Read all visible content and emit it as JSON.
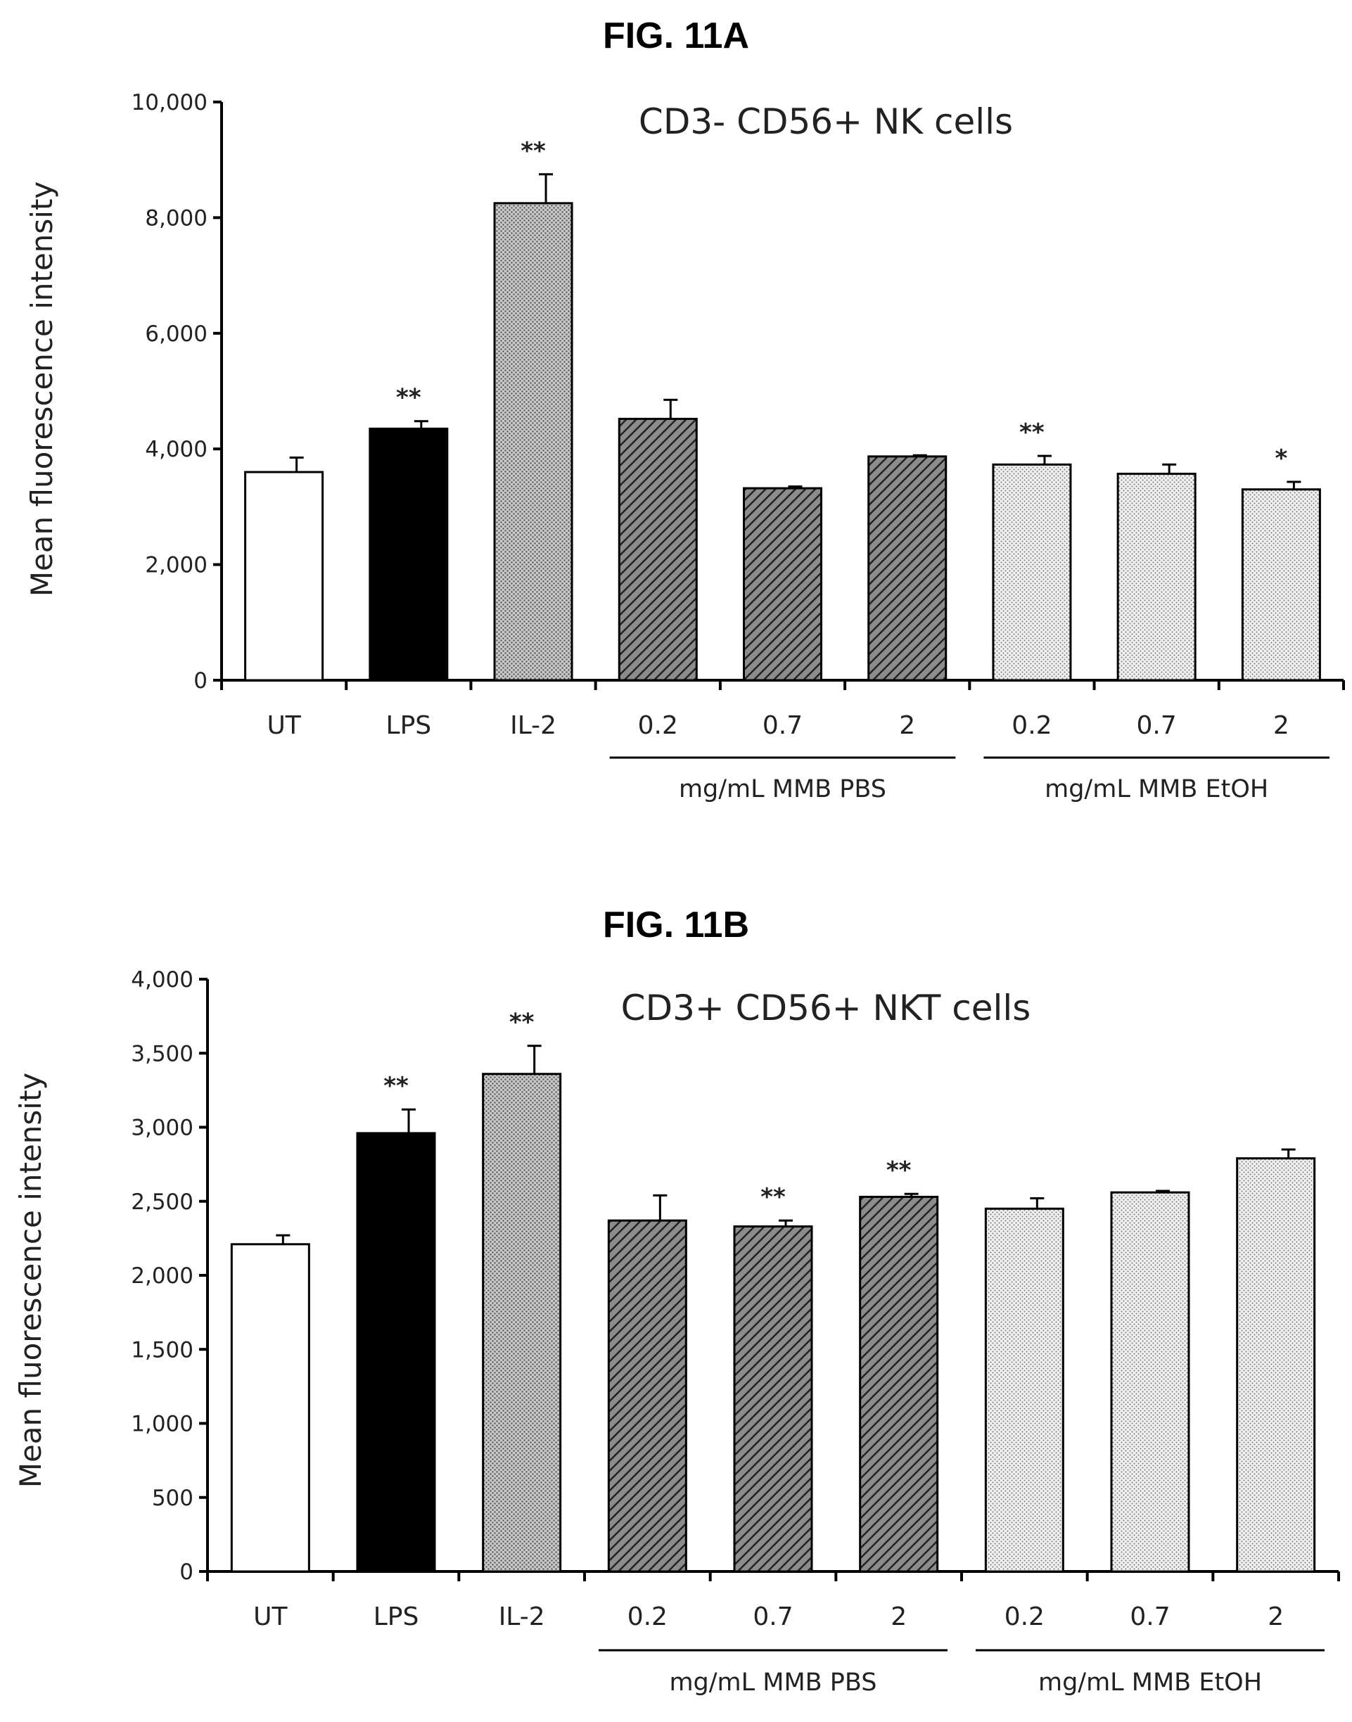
{
  "chart_data": [
    {
      "type": "bar",
      "figure_label": "FIG. 11A",
      "title": "CD3- CD56+ NK cells",
      "ylabel": "Mean fluorescence intensity",
      "ylim": [
        0,
        10000
      ],
      "yticks": [
        0,
        2000,
        4000,
        6000,
        8000,
        10000
      ],
      "ytick_labels": [
        "0",
        "2,000",
        "4,000",
        "6,000",
        "8,000",
        "10,000"
      ],
      "categories": [
        "UT",
        "LPS",
        "IL-2",
        "0.2",
        "0.7",
        "2",
        "0.2",
        "0.7",
        "2"
      ],
      "values": [
        3600,
        4350,
        8250,
        4520,
        3320,
        3870,
        3730,
        3570,
        3300
      ],
      "errors": [
        250,
        130,
        500,
        330,
        30,
        20,
        150,
        160,
        130
      ],
      "significance": [
        "",
        "**",
        "**",
        "",
        "",
        "",
        "**",
        "",
        "*"
      ],
      "fills": [
        "white",
        "black",
        "gray-dots",
        "hatch",
        "hatch",
        "hatch",
        "light-dots",
        "light-dots",
        "light-dots"
      ],
      "groups": [
        {
          "label": "mg/mL MMB PBS",
          "start": 3,
          "end": 5
        },
        {
          "label": "mg/mL MMB EtOH",
          "start": 6,
          "end": 8
        }
      ]
    },
    {
      "type": "bar",
      "figure_label": "FIG. 11B",
      "title": "CD3+ CD56+ NKT cells",
      "ylabel": "Mean fluorescence intensity",
      "ylim": [
        0,
        4000
      ],
      "yticks": [
        0,
        500,
        1000,
        1500,
        2000,
        2500,
        3000,
        3500,
        4000
      ],
      "ytick_labels": [
        "0",
        "500",
        "1,000",
        "1,500",
        "2,000",
        "2,500",
        "3,000",
        "3,500",
        "4,000"
      ],
      "categories": [
        "UT",
        "LPS",
        "IL-2",
        "0.2",
        "0.7",
        "2",
        "0.2",
        "0.7",
        "2"
      ],
      "values": [
        2210,
        2960,
        3360,
        2370,
        2330,
        2530,
        2450,
        2560,
        2790
      ],
      "errors": [
        60,
        160,
        190,
        170,
        40,
        20,
        70,
        10,
        60
      ],
      "significance": [
        "",
        "**",
        "**",
        "",
        "**",
        "**",
        "",
        "",
        ""
      ],
      "fills": [
        "white",
        "black",
        "gray-dots",
        "hatch",
        "hatch",
        "hatch",
        "light-dots",
        "light-dots",
        "light-dots"
      ],
      "groups": [
        {
          "label": "mg/mL MMB PBS",
          "start": 3,
          "end": 5
        },
        {
          "label": "mg/mL MMB EtOH",
          "start": 6,
          "end": 8
        }
      ]
    }
  ]
}
